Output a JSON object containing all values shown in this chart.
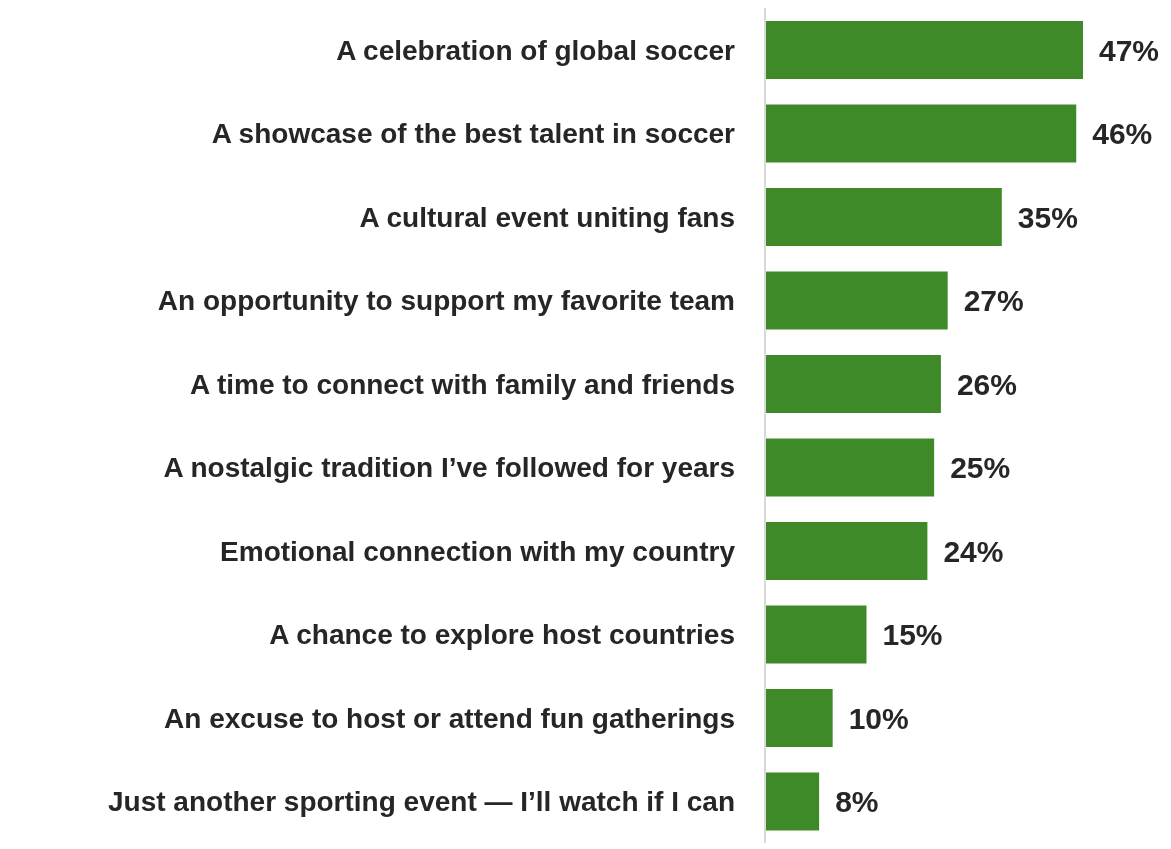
{
  "chart_data": {
    "type": "bar",
    "orientation": "horizontal",
    "categories": [
      "A celebration of global soccer",
      "A showcase of the best talent in soccer",
      "A cultural event uniting fans",
      "An opportunity to support my favorite team",
      "A time to connect with family and friends",
      "A nostalgic tradition I’ve followed for years",
      "Emotional connection with my country",
      "A chance to explore host countries",
      "An excuse to host or attend fun gatherings",
      "Just another sporting event — I’ll watch if I can"
    ],
    "values": [
      47,
      46,
      35,
      27,
      26,
      25,
      24,
      15,
      10,
      8
    ],
    "value_labels": [
      "47%",
      "46%",
      "35%",
      "27%",
      "26%",
      "25%",
      "24%",
      "15%",
      "10%",
      "8%"
    ],
    "color": "#3e8a28"
  }
}
